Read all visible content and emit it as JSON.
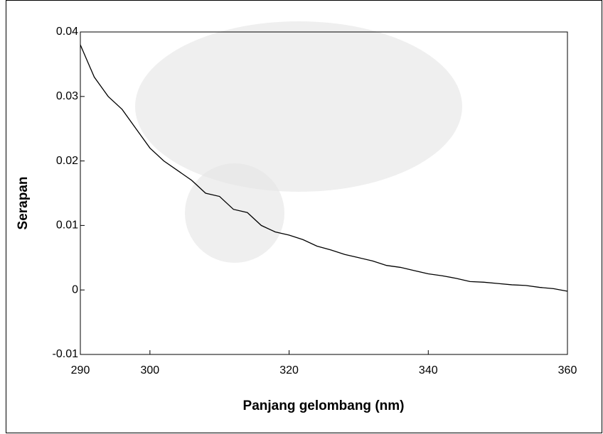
{
  "chart_data": {
    "type": "line",
    "x_label": "Panjang gelombang (nm)",
    "y_label": "Serapan",
    "x": [
      290,
      292,
      294,
      296,
      298,
      300,
      302,
      304,
      306,
      308,
      310,
      312,
      314,
      316,
      318,
      320,
      322,
      324,
      326,
      328,
      330,
      332,
      334,
      336,
      338,
      340,
      342,
      344,
      346,
      348,
      350,
      352,
      354,
      356,
      358,
      360
    ],
    "series": [
      {
        "color": "#000000",
        "values": [
          0.038,
          0.033,
          0.03,
          0.028,
          0.025,
          0.022,
          0.02,
          0.0185,
          0.017,
          0.015,
          0.0145,
          0.0125,
          0.012,
          0.01,
          0.009,
          0.0085,
          0.0078,
          0.0068,
          0.0062,
          0.0055,
          0.005,
          0.0045,
          0.0038,
          0.0035,
          0.003,
          0.0025,
          0.0022,
          0.0018,
          0.0013,
          0.0012,
          0.001,
          0.0008,
          0.0007,
          0.0004,
          0.0002,
          -0.0002
        ]
      }
    ],
    "xlim": [
      290,
      360
    ],
    "xticks": [
      290,
      300,
      320,
      340,
      360
    ],
    "ylim": [
      -0.01,
      0.04
    ],
    "yticks": [
      -0.01,
      0,
      0.01,
      0.02,
      0.03,
      0.04
    ],
    "grid": false
  }
}
